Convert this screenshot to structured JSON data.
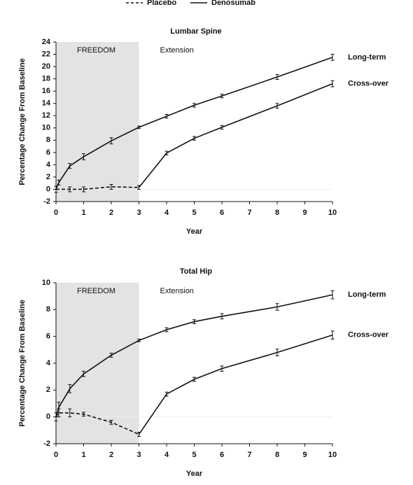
{
  "legend": [
    {
      "name": "Placebo",
      "dash": true
    },
    {
      "name": "Denosumab",
      "dash": false
    }
  ],
  "chart_data": [
    {
      "type": "line",
      "title": "Lumbar Spine",
      "xlabel": "Year",
      "ylabel": "Percentage Change From Baseline",
      "xlim": [
        0,
        10
      ],
      "xticks": [
        0,
        1,
        2,
        3,
        4,
        5,
        6,
        7,
        8,
        9,
        10
      ],
      "ylim": [
        -2,
        24
      ],
      "yticks": [
        -2,
        0,
        2,
        4,
        6,
        8,
        10,
        12,
        14,
        16,
        18,
        20,
        22,
        24
      ],
      "regions": [
        {
          "label": "FREEDOM",
          "start": 0,
          "end": 3,
          "shaded": true
        },
        {
          "label": "Extension",
          "start": 3,
          "end": 10,
          "shaded": false
        }
      ],
      "series": [
        {
          "name": "Placebo",
          "dash": true,
          "end_label": false,
          "color": "#111111",
          "x": [
            0,
            0.5,
            1,
            2,
            3
          ],
          "values": [
            0,
            0,
            0,
            0.4,
            0.3
          ],
          "errors": [
            0.5,
            0.4,
            0.4,
            0.4,
            0.3
          ]
        },
        {
          "name": "Long-term",
          "dash": false,
          "end_label": true,
          "color": "#111111",
          "x": [
            0,
            0.1,
            0.5,
            1,
            2,
            3,
            4,
            5,
            6,
            8,
            10
          ],
          "values": [
            0,
            1.1,
            3.8,
            5.3,
            7.9,
            10.1,
            11.9,
            13.7,
            15.2,
            18.3,
            21.5
          ],
          "errors": [
            0,
            0.4,
            0.4,
            0.5,
            0.5,
            0.2,
            0.3,
            0.3,
            0.3,
            0.4,
            0.5
          ]
        },
        {
          "name": "Cross-over",
          "dash": false,
          "end_label": true,
          "color": "#111111",
          "x": [
            3,
            4,
            5,
            6,
            8,
            10
          ],
          "values": [
            0.3,
            5.9,
            8.3,
            10.1,
            13.6,
            17.2
          ],
          "errors": [
            0.3,
            0.3,
            0.3,
            0.3,
            0.4,
            0.5
          ]
        }
      ]
    },
    {
      "type": "line",
      "title": "Total Hip",
      "xlabel": "Year",
      "ylabel": "Percentage Change From Baseline",
      "xlim": [
        0,
        10
      ],
      "xticks": [
        0,
        1,
        2,
        3,
        4,
        5,
        6,
        7,
        8,
        9,
        10
      ],
      "ylim": [
        -2,
        10
      ],
      "yticks": [
        -2,
        0,
        2,
        4,
        6,
        8,
        10
      ],
      "regions": [
        {
          "label": "FREEDOM",
          "start": 0,
          "end": 3,
          "shaded": true
        },
        {
          "label": "Extension",
          "start": 3,
          "end": 10,
          "shaded": false
        }
      ],
      "series": [
        {
          "name": "Placebo",
          "dash": true,
          "end_label": false,
          "color": "#111111",
          "x": [
            0,
            0.1,
            0.5,
            1,
            2,
            3
          ],
          "values": [
            0,
            0.3,
            0.3,
            0.2,
            -0.4,
            -1.3
          ],
          "errors": [
            0.3,
            0.3,
            0.3,
            0.15,
            0.15,
            0.15
          ]
        },
        {
          "name": "Long-term",
          "dash": false,
          "end_label": true,
          "color": "#111111",
          "x": [
            0,
            0.1,
            0.5,
            1,
            2,
            3,
            4,
            5,
            6,
            8,
            10
          ],
          "values": [
            0,
            0.7,
            2.1,
            3.2,
            4.6,
            5.7,
            6.5,
            7.1,
            7.5,
            8.2,
            9.1
          ],
          "errors": [
            0,
            0.4,
            0.3,
            0.2,
            0.15,
            0.1,
            0.15,
            0.15,
            0.2,
            0.25,
            0.3
          ]
        },
        {
          "name": "Cross-over",
          "dash": false,
          "end_label": true,
          "color": "#111111",
          "x": [
            3,
            4,
            5,
            6,
            8,
            10
          ],
          "values": [
            -1.3,
            1.7,
            2.8,
            3.6,
            4.8,
            6.1
          ],
          "errors": [
            0.15,
            0.15,
            0.15,
            0.2,
            0.25,
            0.3
          ]
        }
      ]
    }
  ]
}
